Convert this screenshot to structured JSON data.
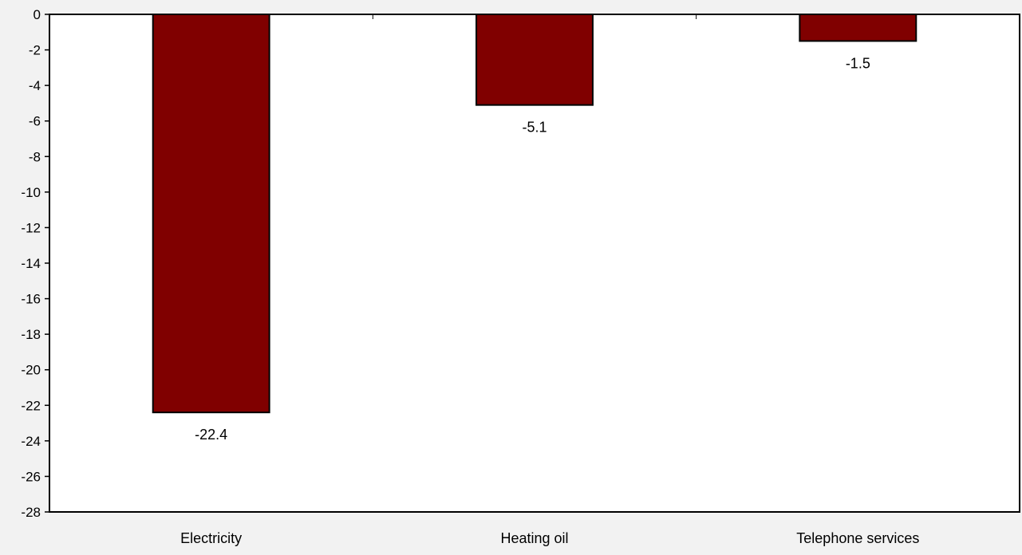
{
  "chart_data": {
    "type": "bar",
    "categories": [
      "Electricity",
      "Heating oil",
      "Telephone services"
    ],
    "values": [
      -22.4,
      -5.1,
      -1.5
    ],
    "data_labels": [
      "-22.4",
      "-5.1",
      "-1.5"
    ],
    "title": "",
    "xlabel": "",
    "ylabel": "",
    "ylim": [
      -28,
      0
    ],
    "y_ticks": [
      0,
      -2,
      -4,
      -6,
      -8,
      -10,
      -12,
      -14,
      -16,
      -18,
      -20,
      -22,
      -24,
      -26,
      -28
    ],
    "grid": false,
    "legend": "none",
    "colors": {
      "bar_fill": "#800000",
      "bar_stroke": "#000000",
      "plot_background": "#ffffff",
      "page_background": "#f2f2f2",
      "axis": "#000000"
    }
  }
}
